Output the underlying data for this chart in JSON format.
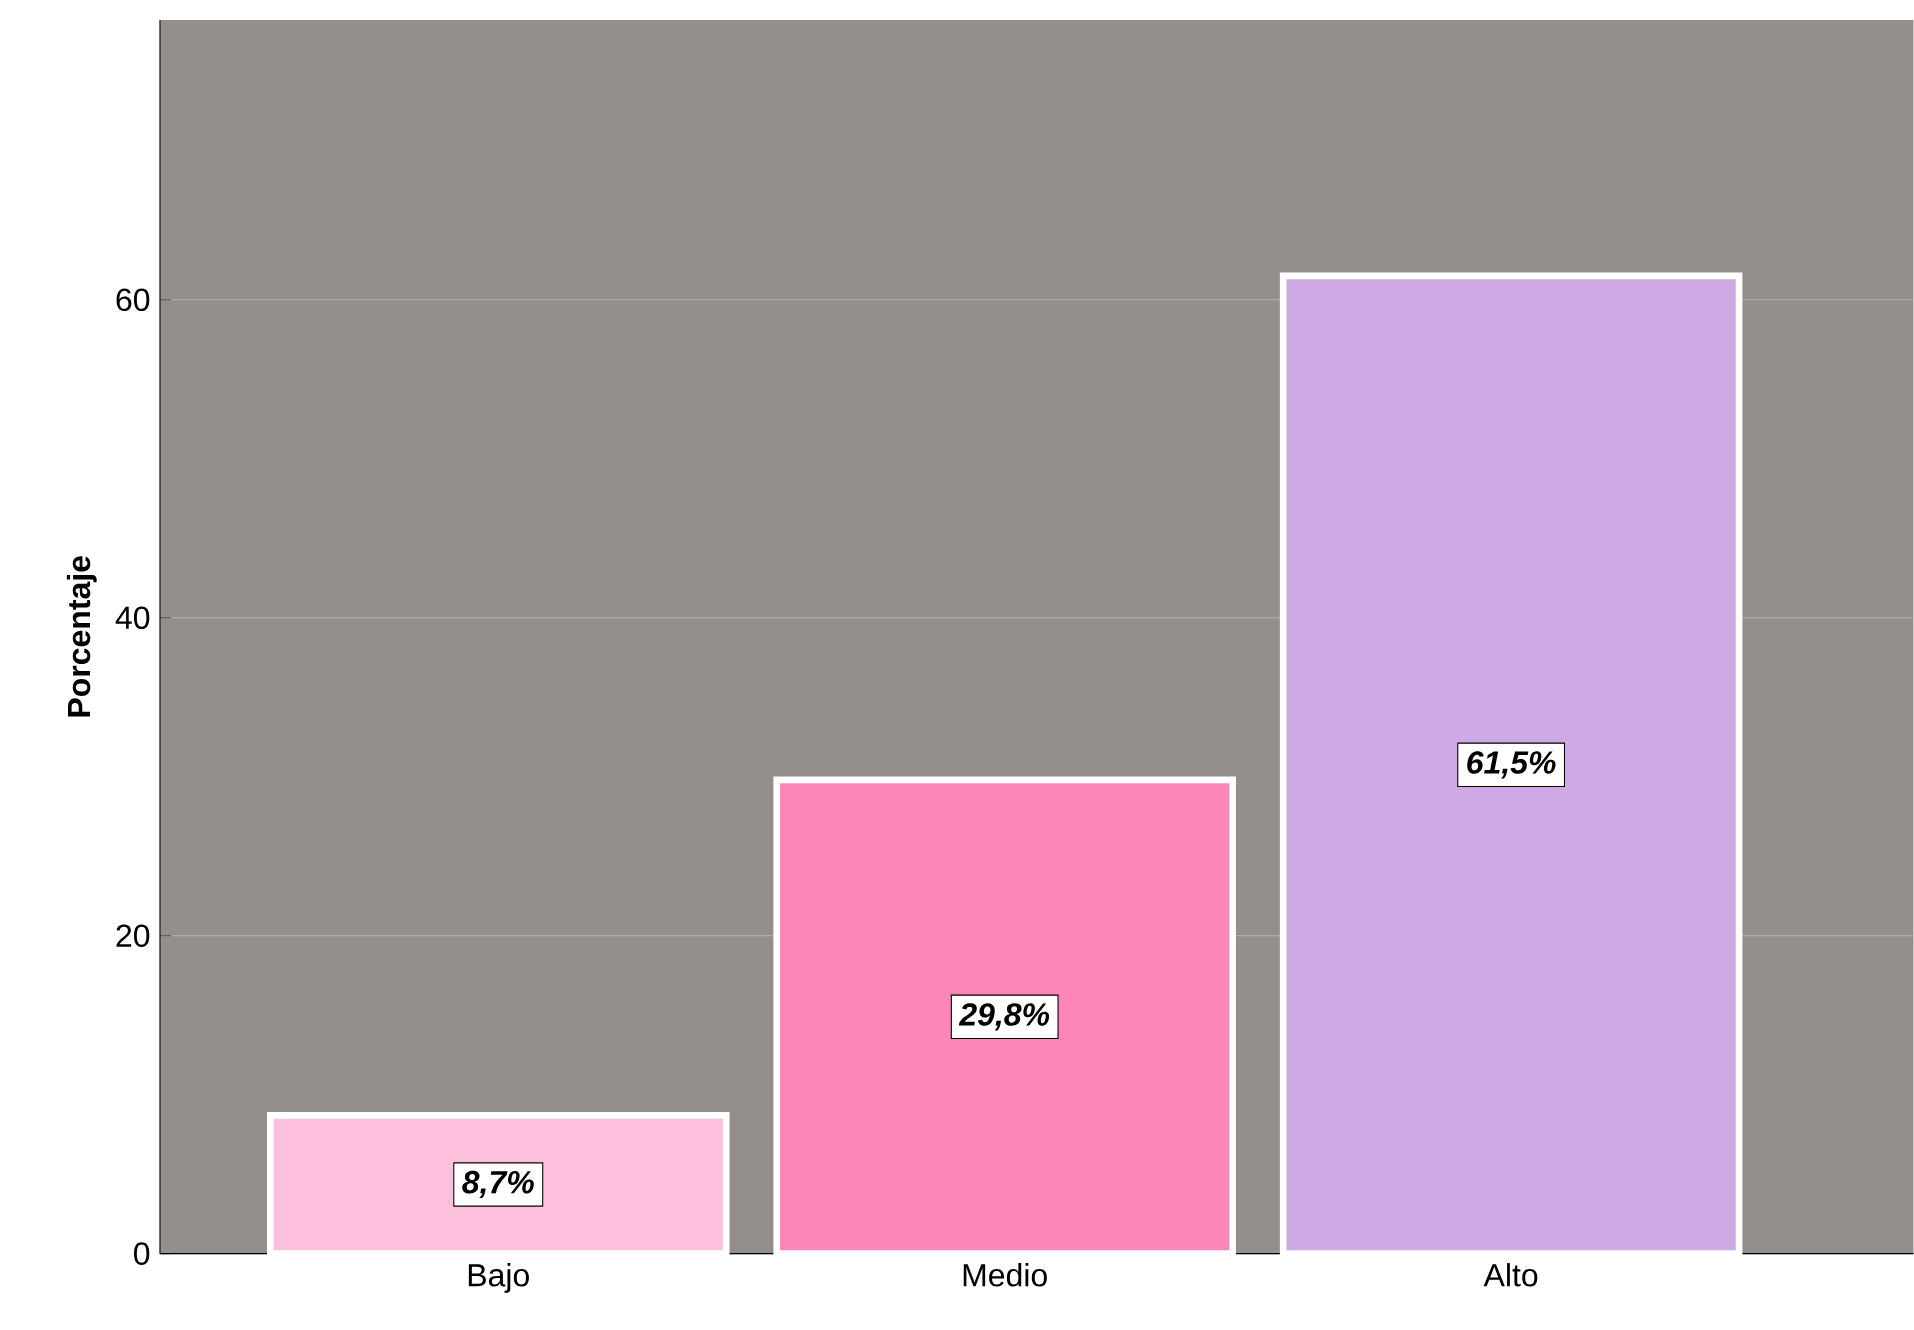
{
  "chart_data": {
    "type": "bar",
    "ylabel": "Porcentaje",
    "categories": [
      "Bajo",
      "Medio",
      "Alto"
    ],
    "values": [
      8.7,
      29.8,
      61.5
    ],
    "colors": [
      "#fcc0dd",
      "#fd86b8",
      "#cfa9e3"
    ],
    "value_labels": [
      "8,7%",
      "29,8%",
      "61,5%"
    ],
    "ylim": [
      0,
      77.6
    ],
    "yticks": [
      0,
      20,
      40,
      60
    ],
    "grid": "y"
  }
}
